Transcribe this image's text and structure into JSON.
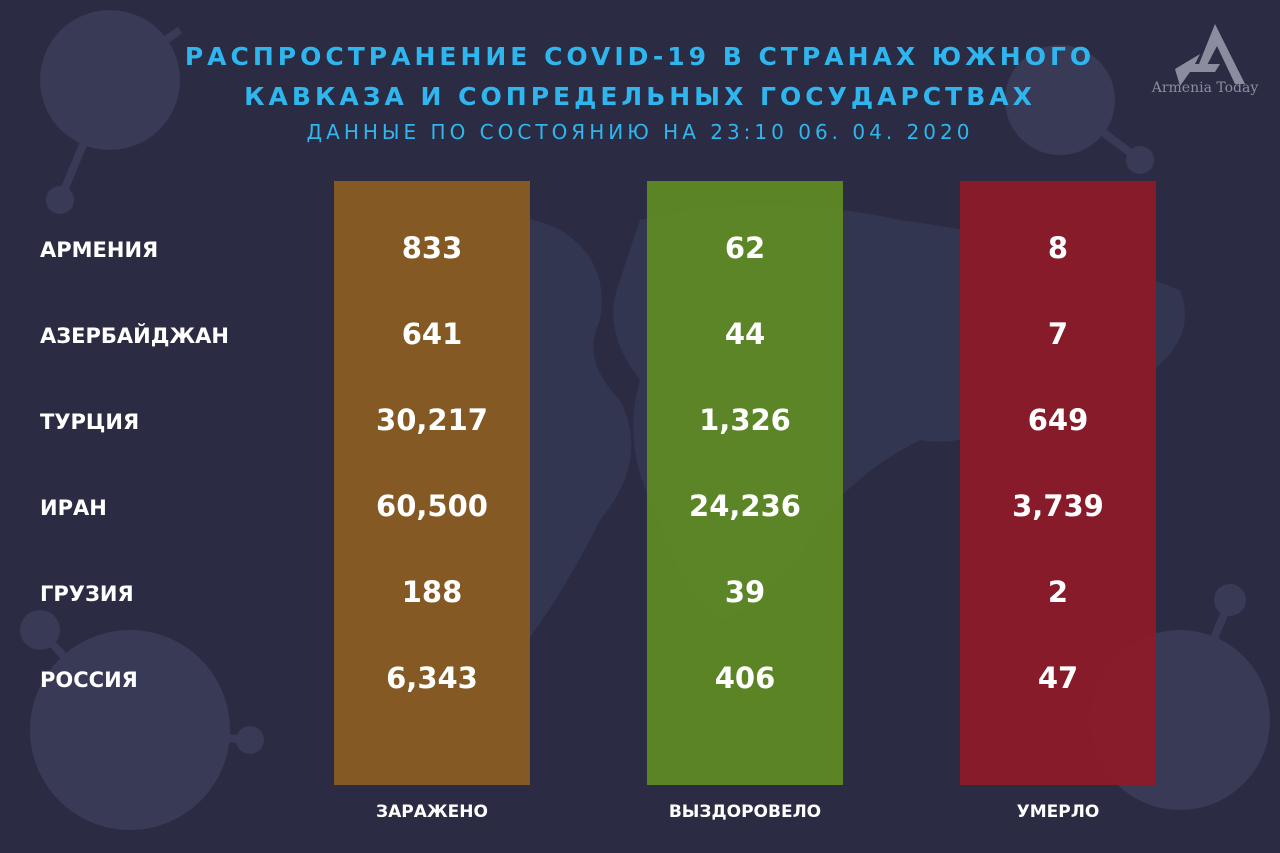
{
  "header": {
    "title_line1": "РАСПРОСТРАНЕНИЕ COVID-19 В СТРАНАХ ЮЖНОГО",
    "title_line2": "КАВКАЗА И СОПРЕДЕЛЬНЫХ ГОСУДАРСТВАХ",
    "subtitle": "ДАННЫЕ ПО СОСТОЯНИЮ НА 23:10  06. 04. 2020"
  },
  "logo": {
    "text": "Armenia Today"
  },
  "chart_data": {
    "type": "table",
    "title": "РАСПРОСТРАНЕНИЕ COVID-19 В СТРАНАХ ЮЖНОГО КАВКАЗА И СОПРЕДЕЛЬНЫХ ГОСУДАРСТВАХ",
    "subtitle": "ДАННЫЕ ПО СОСТОЯНИЮ НА 23:10  06. 04. 2020",
    "rows": [
      "АРМЕНИЯ",
      "АЗЕРБАЙДЖАН",
      "ТУРЦИЯ",
      "ИРАН",
      "ГРУЗИЯ",
      "РОССИЯ"
    ],
    "columns": [
      {
        "name": "ЗАРАЖЕНО",
        "color": "#8a5c22",
        "values": [
          "833",
          "641",
          "30,217",
          "60,500",
          "188",
          "6,343"
        ]
      },
      {
        "name": "ВЫЗДОРОВЕЛО",
        "color": "#5e8a24",
        "values": [
          "62",
          "44",
          "1,326",
          "24,236",
          "39",
          "406"
        ]
      },
      {
        "name": "УМЕРЛО",
        "color": "#8c1a28",
        "values": [
          "8",
          "7",
          "649",
          "3,739",
          "2",
          "47"
        ]
      }
    ]
  }
}
